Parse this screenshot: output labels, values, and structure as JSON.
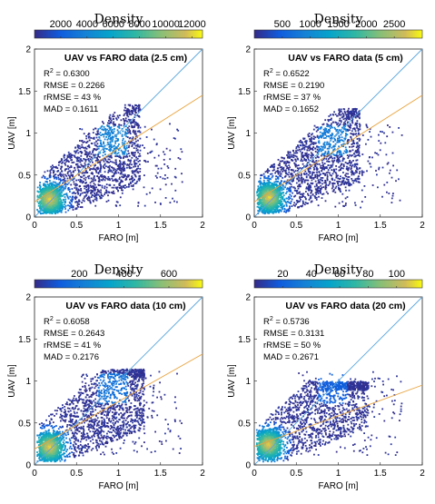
{
  "chart_data": [
    {
      "type": "scatter",
      "title": "UAV vs FARO data (2.5 cm)",
      "xlabel": "FARO [m]",
      "ylabel": "UAV [m]",
      "xlim": [
        0,
        2
      ],
      "ylim": [
        0,
        2
      ],
      "xticks": [
        "0",
        "0.5",
        "1",
        "1.5",
        "2"
      ],
      "yticks": [
        "0",
        "0.5",
        "1",
        "1.5",
        "2"
      ],
      "colorbar": {
        "label": "Density",
        "ticks": [
          "2000",
          "4000",
          "6000",
          "8000",
          "10000",
          "12000"
        ],
        "tick_values": [
          2000,
          4000,
          6000,
          8000,
          10000,
          12000
        ],
        "range": [
          0,
          12800
        ]
      },
      "stats": {
        "r2": "0.6300",
        "rmse": "0.2266",
        "rrmse": "43 %",
        "mad": "0.1611"
      },
      "fit_line": {
        "color": "#e8a33c",
        "points": [
          [
            0,
            0.18
          ],
          [
            2,
            1.45
          ]
        ]
      },
      "identity_line": {
        "color": "#5aa6dc",
        "points": [
          [
            0,
            0
          ],
          [
            2,
            2
          ]
        ]
      },
      "cloud": {
        "xmax": 1.25,
        "ymax": 1.35,
        "hot": [
          0.17,
          0.22
        ],
        "spread": 1.0
      },
      "grid": false
    },
    {
      "type": "scatter",
      "title": "UAV vs FARO data (5 cm)",
      "xlabel": "FARO [m]",
      "ylabel": "UAV [m]",
      "xlim": [
        0,
        2
      ],
      "ylim": [
        0,
        2
      ],
      "xticks": [
        "0",
        "0.5",
        "1",
        "1.5",
        "2"
      ],
      "yticks": [
        "0",
        "0.5",
        "1",
        "1.5",
        "2"
      ],
      "colorbar": {
        "label": "Density",
        "ticks": [
          "500",
          "1000",
          "1500",
          "2000",
          "2500"
        ],
        "tick_values": [
          500,
          1000,
          1500,
          2000,
          2500
        ],
        "range": [
          0,
          3000
        ]
      },
      "stats": {
        "r2": "0.6522",
        "rmse": "0.2190",
        "rrmse": "37 %",
        "mad": "0.1652"
      },
      "fit_line": {
        "color": "#e8a33c",
        "points": [
          [
            0,
            0.18
          ],
          [
            2,
            1.45
          ]
        ]
      },
      "identity_line": {
        "color": "#5aa6dc",
        "points": [
          [
            0,
            0
          ],
          [
            2,
            2
          ]
        ]
      },
      "cloud": {
        "xmax": 1.25,
        "ymax": 1.3,
        "hot": [
          0.17,
          0.24
        ],
        "spread": 0.9
      },
      "grid": false
    },
    {
      "type": "scatter",
      "title": "UAV vs FARO data (10 cm)",
      "xlabel": "FARO [m]",
      "ylabel": "UAV [m]",
      "xlim": [
        0,
        2
      ],
      "ylim": [
        0,
        2
      ],
      "xticks": [
        "0",
        "0.5",
        "1",
        "1.5",
        "2"
      ],
      "yticks": [
        "0",
        "0.5",
        "1",
        "1.5",
        "2"
      ],
      "colorbar": {
        "label": "Density",
        "ticks": [
          "200",
          "400",
          "600"
        ],
        "tick_values": [
          200,
          400,
          600
        ],
        "range": [
          0,
          750
        ]
      },
      "stats": {
        "r2": "0.6058",
        "rmse": "0.2643",
        "rrmse": "41 %",
        "mad": "0.2176"
      },
      "fit_line": {
        "color": "#e8a33c",
        "points": [
          [
            0,
            0.19
          ],
          [
            2,
            1.32
          ]
        ]
      },
      "identity_line": {
        "color": "#5aa6dc",
        "points": [
          [
            0,
            0
          ],
          [
            2,
            2
          ]
        ]
      },
      "cloud": {
        "xmax": 1.3,
        "ymax": 1.15,
        "hot": [
          0.17,
          0.22
        ],
        "spread": 0.75
      },
      "grid": false
    },
    {
      "type": "scatter",
      "title": "UAV vs FARO data (20 cm)",
      "xlabel": "FARO [m]",
      "ylabel": "UAV [m]",
      "xlim": [
        0,
        2
      ],
      "ylim": [
        0,
        2
      ],
      "xticks": [
        "0",
        "0.5",
        "1",
        "1.5",
        "2"
      ],
      "yticks": [
        "0",
        "0.5",
        "1",
        "1.5",
        "2"
      ],
      "colorbar": {
        "label": "Density",
        "ticks": [
          "20",
          "40",
          "60",
          "80",
          "100"
        ],
        "tick_values": [
          20,
          40,
          60,
          80,
          100
        ],
        "range": [
          0,
          118
        ]
      },
      "stats": {
        "r2": "0.5736",
        "rmse": "0.3131",
        "rrmse": "50 %",
        "mad": "0.2671"
      },
      "fit_line": {
        "color": "#e8a33c",
        "points": [
          [
            0,
            0.22
          ],
          [
            2,
            0.95
          ]
        ]
      },
      "identity_line": {
        "color": "#5aa6dc",
        "points": [
          [
            0,
            0
          ],
          [
            2,
            2
          ]
        ]
      },
      "cloud": {
        "xmax": 1.35,
        "ymax": 1.0,
        "hot": [
          0.16,
          0.25
        ],
        "spread": 0.5
      },
      "grid": false
    }
  ]
}
